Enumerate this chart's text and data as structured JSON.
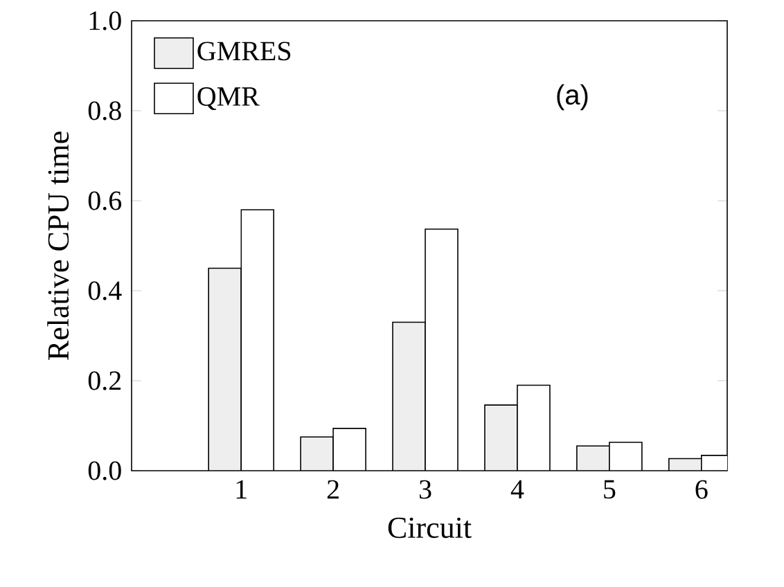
{
  "chart_data": {
    "type": "bar",
    "xlabel": "Circuit",
    "ylabel": "Relative CPU time",
    "categories": [
      "1",
      "2",
      "3",
      "4",
      "5",
      "6"
    ],
    "series": [
      {
        "name": "GMRES",
        "color": "#eeeeee",
        "values": [
          0.45,
          0.075,
          0.33,
          0.146,
          0.055,
          0.027
        ]
      },
      {
        "name": "QMR",
        "color": "#ffffff",
        "values": [
          0.58,
          0.094,
          0.537,
          0.19,
          0.063,
          0.034
        ]
      }
    ],
    "ylim": [
      0,
      1.0
    ],
    "yticks": [
      {
        "value": 0,
        "label": "0.0"
      },
      {
        "value": 0.2,
        "label": "0.2"
      },
      {
        "value": 0.4,
        "label": "0.4"
      },
      {
        "value": 0.6,
        "label": "0.6"
      },
      {
        "value": 0.8,
        "label": "0.8"
      },
      {
        "value": 1.0,
        "label": "1.0"
      }
    ],
    "annotations": [
      "(a)"
    ],
    "legend": "top left",
    "grid": false
  }
}
